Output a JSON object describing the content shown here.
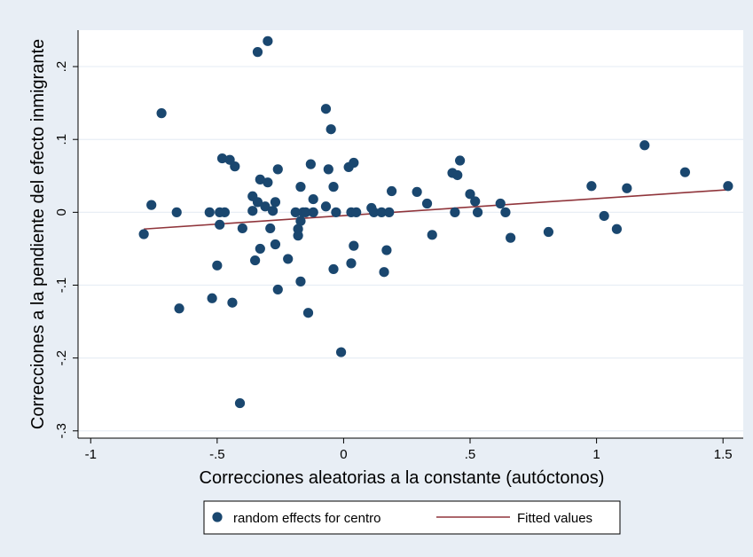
{
  "chart_data": {
    "type": "scatter",
    "title": "",
    "xlabel": "Correcciones aleatorias a la constante (autóctonos)",
    "ylabel": "Correcciones a la pendiente del efecto inmigrante",
    "xlim": [
      -1.05,
      1.58
    ],
    "ylim": [
      -0.31,
      0.25
    ],
    "x_ticks": [
      {
        "value": -1,
        "label": "-1"
      },
      {
        "value": -0.5,
        "label": "-.5"
      },
      {
        "value": 0,
        "label": "0"
      },
      {
        "value": 0.5,
        "label": ".5"
      },
      {
        "value": 1,
        "label": "1"
      },
      {
        "value": 1.5,
        "label": "1.5"
      }
    ],
    "y_ticks": [
      {
        "value": 0.2,
        "label": ".2"
      },
      {
        "value": 0.1,
        "label": ".1"
      },
      {
        "value": 0,
        "label": "0"
      },
      {
        "value": -0.1,
        "label": "-.1"
      },
      {
        "value": -0.2,
        "label": "-.2"
      },
      {
        "value": -0.3,
        "label": "-.3"
      }
    ],
    "grid": true,
    "legend_position": "bottom",
    "colors": {
      "outer_background": "#e8eef5",
      "plot_background": "#ffffff",
      "grid": "#e8eef5",
      "points": "#1a476f",
      "fit_line": "#90353b",
      "legend_border": "#000000"
    },
    "series": [
      {
        "name": "random effects for centro",
        "kind": "scatter",
        "points": [
          [
            -0.79,
            -0.03
          ],
          [
            -0.76,
            0.01
          ],
          [
            -0.72,
            0.136
          ],
          [
            -0.66,
            0.0
          ],
          [
            -0.65,
            -0.132
          ],
          [
            -0.53,
            0.0
          ],
          [
            -0.52,
            -0.118
          ],
          [
            -0.5,
            -0.073
          ],
          [
            -0.49,
            0.0
          ],
          [
            -0.49,
            -0.017
          ],
          [
            -0.48,
            0.074
          ],
          [
            -0.47,
            0.0
          ],
          [
            -0.45,
            0.072
          ],
          [
            -0.44,
            -0.124
          ],
          [
            -0.43,
            0.063
          ],
          [
            -0.41,
            -0.262
          ],
          [
            -0.4,
            -0.022
          ],
          [
            -0.36,
            0.022
          ],
          [
            -0.36,
            0.002
          ],
          [
            -0.35,
            -0.066
          ],
          [
            -0.34,
            0.014
          ],
          [
            -0.34,
            0.22
          ],
          [
            -0.33,
            -0.05
          ],
          [
            -0.33,
            0.045
          ],
          [
            -0.31,
            0.008
          ],
          [
            -0.3,
            0.041
          ],
          [
            -0.3,
            0.235
          ],
          [
            -0.29,
            -0.022
          ],
          [
            -0.28,
            0.002
          ],
          [
            -0.27,
            0.014
          ],
          [
            -0.27,
            -0.044
          ],
          [
            -0.26,
            0.059
          ],
          [
            -0.26,
            -0.106
          ],
          [
            -0.22,
            -0.064
          ],
          [
            -0.19,
            0.0
          ],
          [
            -0.18,
            -0.023
          ],
          [
            -0.18,
            -0.032
          ],
          [
            -0.17,
            0.035
          ],
          [
            -0.17,
            -0.095
          ],
          [
            -0.17,
            -0.012
          ],
          [
            -0.16,
            0.0
          ],
          [
            -0.15,
            0.0
          ],
          [
            -0.14,
            -0.138
          ],
          [
            -0.13,
            0.066
          ],
          [
            -0.12,
            0.018
          ],
          [
            -0.12,
            0.0
          ],
          [
            -0.07,
            0.008
          ],
          [
            -0.07,
            0.142
          ],
          [
            -0.06,
            0.059
          ],
          [
            -0.05,
            0.114
          ],
          [
            -0.04,
            0.035
          ],
          [
            -0.04,
            -0.078
          ],
          [
            -0.03,
            0.0
          ],
          [
            -0.01,
            -0.192
          ],
          [
            0.02,
            0.062
          ],
          [
            0.03,
            -0.07
          ],
          [
            0.03,
            0.0
          ],
          [
            0.04,
            0.068
          ],
          [
            0.04,
            -0.046
          ],
          [
            0.05,
            0.0
          ],
          [
            0.11,
            0.006
          ],
          [
            0.12,
            0.0
          ],
          [
            0.15,
            0.0
          ],
          [
            0.16,
            -0.082
          ],
          [
            0.17,
            -0.052
          ],
          [
            0.18,
            0.0
          ],
          [
            0.19,
            0.029
          ],
          [
            0.29,
            0.028
          ],
          [
            0.33,
            0.012
          ],
          [
            0.35,
            -0.031
          ],
          [
            0.43,
            0.054
          ],
          [
            0.44,
            0.0
          ],
          [
            0.45,
            0.051
          ],
          [
            0.46,
            0.071
          ],
          [
            0.5,
            0.025
          ],
          [
            0.52,
            0.015
          ],
          [
            0.53,
            0.0
          ],
          [
            0.62,
            0.012
          ],
          [
            0.64,
            0.0
          ],
          [
            0.66,
            -0.035
          ],
          [
            0.81,
            -0.027
          ],
          [
            0.98,
            0.036
          ],
          [
            1.03,
            -0.005
          ],
          [
            1.08,
            -0.023
          ],
          [
            1.12,
            0.033
          ],
          [
            1.19,
            0.092
          ],
          [
            1.35,
            0.055
          ],
          [
            1.52,
            0.036
          ]
        ]
      },
      {
        "name": "Fitted values",
        "kind": "line",
        "points": [
          [
            -0.79,
            -0.023
          ],
          [
            1.52,
            0.031
          ]
        ]
      }
    ]
  }
}
